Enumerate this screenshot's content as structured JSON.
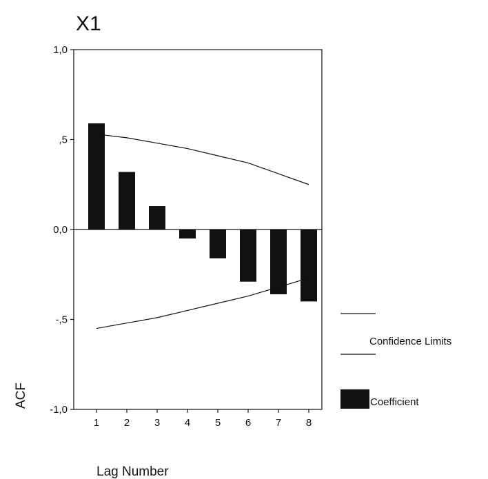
{
  "chart_data": {
    "type": "bar",
    "title": "X1",
    "xlabel": "Lag Number",
    "ylabel": "ACF",
    "categories": [
      "1",
      "2",
      "3",
      "4",
      "5",
      "6",
      "7",
      "8"
    ],
    "series": [
      {
        "name": "Coefficient",
        "values": [
          0.59,
          0.32,
          0.13,
          -0.05,
          -0.16,
          -0.29,
          -0.36,
          -0.4
        ]
      }
    ],
    "confidence_limits": {
      "name": "Confidence Limits",
      "upper": [
        0.53,
        0.51,
        0.48,
        0.45,
        0.41,
        0.37,
        0.31,
        0.25
      ],
      "lower": [
        -0.55,
        -0.52,
        -0.49,
        -0.45,
        -0.41,
        -0.37,
        -0.32,
        -0.27
      ]
    },
    "ylim": [
      -1.0,
      1.0
    ],
    "yticks": [
      {
        "value": 1.0,
        "label": "1,0"
      },
      {
        "value": 0.5,
        "label": ",5"
      },
      {
        "value": 0.0,
        "label": "0,0"
      },
      {
        "value": -0.5,
        "label": "-,5"
      },
      {
        "value": -1.0,
        "label": "-1,0"
      }
    ],
    "grid": false,
    "legend_position": "right",
    "colors": {
      "bars": "#111111",
      "lines": "#111111",
      "frame": "#111111"
    }
  }
}
